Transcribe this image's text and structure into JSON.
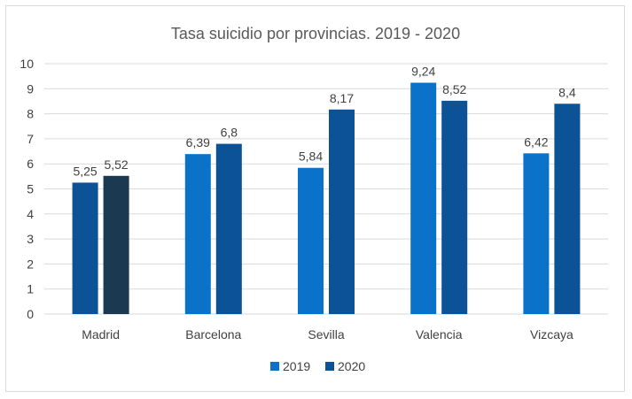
{
  "chart_data": {
    "type": "bar",
    "title": "Tasa suicidio por provincias. 2019 - 2020",
    "xlabel": "",
    "ylabel": "",
    "categories": [
      "Madrid",
      "Barcelona",
      "Sevilla",
      "Valencia",
      "Vizcaya"
    ],
    "series": [
      {
        "name": "2019",
        "values": [
          5.25,
          6.39,
          5.84,
          9.24,
          6.42
        ],
        "labels": [
          "5,25",
          "6,39",
          "5,84",
          "9,24",
          "6,42"
        ],
        "colors": [
          "#0b5296",
          "#0a73c9",
          "#0a73c9",
          "#0a73c9",
          "#0a73c9"
        ]
      },
      {
        "name": "2020",
        "values": [
          5.52,
          6.8,
          8.17,
          8.52,
          8.4
        ],
        "labels": [
          "5,52",
          "6,8",
          "8,17",
          "8,52",
          "8,4"
        ],
        "colors": [
          "#1b3a52",
          "#0b5296",
          "#0b5296",
          "#0b5296",
          "#0b5296"
        ]
      }
    ],
    "ylim": [
      0,
      10
    ],
    "yticks": [
      "0",
      "1",
      "2",
      "3",
      "4",
      "5",
      "6",
      "7",
      "8",
      "9",
      "10"
    ],
    "grid": true,
    "legend_position": "bottom",
    "legend_colors": [
      "#0a73c9",
      "#0b5296"
    ]
  }
}
